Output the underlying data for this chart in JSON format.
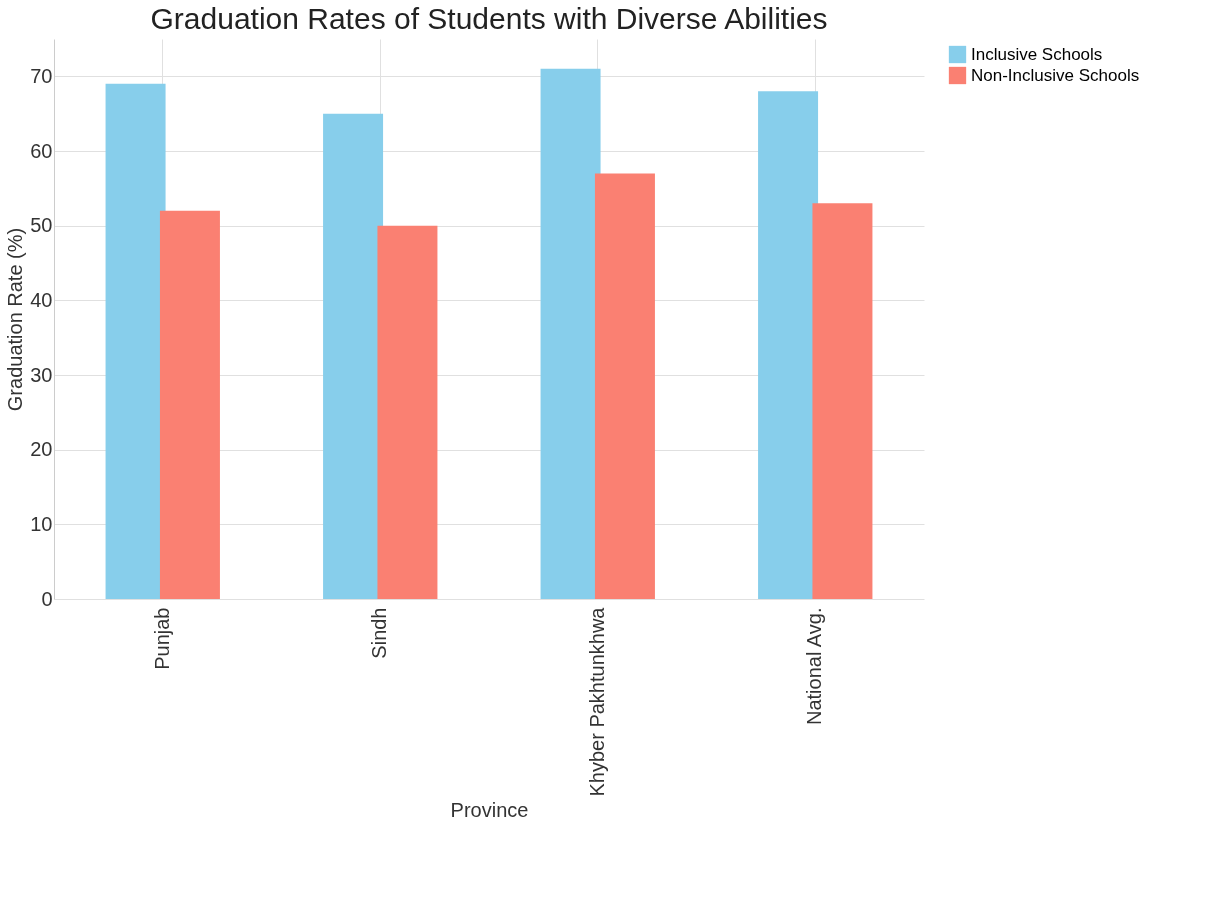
{
  "chart_data": {
    "type": "bar",
    "title": "Graduation Rates of Students with Diverse Abilities",
    "xlabel": "Province",
    "ylabel": "Graduation Rate (%)",
    "categories": [
      "Punjab",
      "Sindh",
      "Khyber Pakhtunkhwa",
      "National Avg."
    ],
    "series": [
      {
        "name": "Inclusive Schools",
        "color": "#87ceeb",
        "values": [
          69,
          65,
          71,
          68
        ]
      },
      {
        "name": "Non-Inclusive Schools",
        "color": "#fa8072",
        "values": [
          52,
          50,
          57,
          53
        ]
      }
    ],
    "ylim": [
      0,
      75
    ],
    "yticks": [
      0,
      10,
      20,
      30,
      40,
      50,
      60,
      70
    ],
    "grid": true,
    "legend": "right"
  }
}
